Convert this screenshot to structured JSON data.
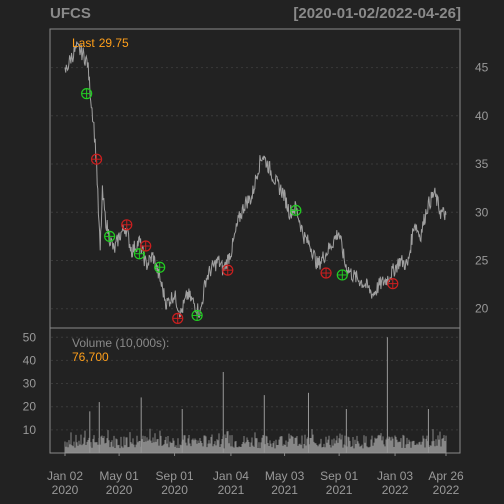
{
  "header": {
    "ticker": "UFCS",
    "date_range": "[2020-01-02/2022-04-26]"
  },
  "colors": {
    "background": "#222222",
    "panel_border": "#8a8a8a",
    "price_line": "#a0a0a0",
    "volume_bars": "#999999",
    "grid": "#3a3a3a",
    "axis_text": "#999999",
    "highlight": "#ff9f1a",
    "buy_marker": "#22cc22",
    "sell_marker": "#cc1f1f"
  },
  "chart_data": [
    {
      "type": "line",
      "title": "UFCS",
      "annotation_label": "Last",
      "annotation_value": "29.75",
      "ylim": [
        18,
        49
      ],
      "y_ticks": [
        20,
        25,
        30,
        35,
        40,
        45
      ],
      "y_axis_side": "right",
      "grid": true,
      "x_dates": [
        "2020-01-02",
        "2020-01-15",
        "2020-01-28",
        "2020-02-10",
        "2020-02-21",
        "2020-02-28",
        "2020-03-06",
        "2020-03-12",
        "2020-03-16",
        "2020-03-20",
        "2020-03-25",
        "2020-03-31",
        "2020-04-09",
        "2020-04-20",
        "2020-05-01",
        "2020-05-15",
        "2020-05-29",
        "2020-06-15",
        "2020-06-30",
        "2020-07-15",
        "2020-07-31",
        "2020-08-14",
        "2020-08-31",
        "2020-09-15",
        "2020-09-30",
        "2020-10-15",
        "2020-10-28",
        "2020-11-09",
        "2020-11-20",
        "2020-12-07",
        "2020-12-18",
        "2021-01-05",
        "2021-01-20",
        "2021-02-05",
        "2021-02-19",
        "2021-03-05",
        "2021-03-15",
        "2021-03-31",
        "2021-04-15",
        "2021-04-30",
        "2021-05-14",
        "2021-05-28",
        "2021-06-15",
        "2021-06-30",
        "2021-07-15",
        "2021-07-30",
        "2021-08-13",
        "2021-08-31",
        "2021-09-15",
        "2021-09-30",
        "2021-10-15",
        "2021-10-29",
        "2021-11-15",
        "2021-11-30",
        "2021-12-15",
        "2021-12-31",
        "2022-01-14",
        "2022-01-31",
        "2022-02-15",
        "2022-02-28",
        "2022-03-15",
        "2022-03-31",
        "2022-04-14",
        "2022-04-26"
      ],
      "close": [
        44.5,
        46.0,
        47.0,
        46.5,
        45.5,
        42.0,
        39.0,
        35.0,
        30.0,
        26.0,
        32.0,
        29.5,
        27.5,
        26.0,
        27.5,
        28.5,
        26.0,
        27.0,
        24.5,
        25.5,
        23.0,
        20.5,
        21.5,
        19.5,
        21.5,
        20.5,
        19.5,
        23.0,
        24.0,
        25.0,
        24.0,
        26.0,
        29.0,
        31.0,
        31.5,
        34.5,
        36.0,
        34.5,
        33.0,
        32.0,
        30.0,
        30.5,
        27.5,
        26.5,
        24.5,
        25.5,
        26.5,
        28.0,
        24.5,
        23.5,
        23.0,
        22.5,
        21.5,
        22.5,
        23.0,
        24.0,
        25.0,
        24.5,
        29.0,
        27.5,
        30.5,
        32.0,
        30.0,
        29.75
      ],
      "signals": [
        {
          "date": "2020-02-19",
          "price": 42.3,
          "type": "buy"
        },
        {
          "date": "2020-03-12",
          "price": 35.5,
          "type": "sell"
        },
        {
          "date": "2020-04-10",
          "price": 27.5,
          "type": "buy"
        },
        {
          "date": "2020-05-18",
          "price": 28.7,
          "type": "sell"
        },
        {
          "date": "2020-06-15",
          "price": 25.7,
          "type": "buy"
        },
        {
          "date": "2020-06-29",
          "price": 26.5,
          "type": "sell"
        },
        {
          "date": "2020-07-30",
          "price": 24.3,
          "type": "buy"
        },
        {
          "date": "2020-09-08",
          "price": 19.0,
          "type": "sell"
        },
        {
          "date": "2020-10-21",
          "price": 19.3,
          "type": "buy"
        },
        {
          "date": "2020-12-28",
          "price": 24.0,
          "type": "sell"
        },
        {
          "date": "2021-05-28",
          "price": 30.2,
          "type": "buy"
        },
        {
          "date": "2021-08-03",
          "price": 23.7,
          "type": "sell"
        },
        {
          "date": "2021-09-08",
          "price": 23.5,
          "type": "buy"
        },
        {
          "date": "2021-12-29",
          "price": 22.6,
          "type": "sell"
        }
      ]
    },
    {
      "type": "bar",
      "title": "Volume (10,000s):",
      "last_value": "76,700",
      "ylim": [
        0,
        54
      ],
      "y_ticks": [
        10,
        20,
        30,
        40,
        50
      ],
      "y_axis_side": "left",
      "baseline_range": [
        2,
        8
      ],
      "spikes": [
        {
          "date": "2020-02-26",
          "value": 18
        },
        {
          "date": "2020-03-18",
          "value": 22
        },
        {
          "date": "2020-06-19",
          "value": 24
        },
        {
          "date": "2020-09-18",
          "value": 19
        },
        {
          "date": "2020-12-18",
          "value": 35
        },
        {
          "date": "2021-03-19",
          "value": 25
        },
        {
          "date": "2021-06-25",
          "value": 26
        },
        {
          "date": "2021-09-17",
          "value": 19
        },
        {
          "date": "2021-12-17",
          "value": 50
        },
        {
          "date": "2022-03-18",
          "value": 19
        }
      ]
    }
  ],
  "x_axis": {
    "ticks": [
      {
        "date": "2020-01-02",
        "line1": "Jan 02",
        "line2": "2020"
      },
      {
        "date": "2020-05-01",
        "line1": "May 01",
        "line2": "2020"
      },
      {
        "date": "2020-09-01",
        "line1": "Sep 01",
        "line2": "2020"
      },
      {
        "date": "2021-01-04",
        "line1": "Jan 04",
        "line2": "2021"
      },
      {
        "date": "2021-05-03",
        "line1": "May 03",
        "line2": "2021"
      },
      {
        "date": "2021-09-01",
        "line1": "Sep 01",
        "line2": "2021"
      },
      {
        "date": "2022-01-03",
        "line1": "Jan 03",
        "line2": "2022"
      },
      {
        "date": "2022-04-26",
        "line1": "Apr 26",
        "line2": "2022"
      }
    ]
  }
}
